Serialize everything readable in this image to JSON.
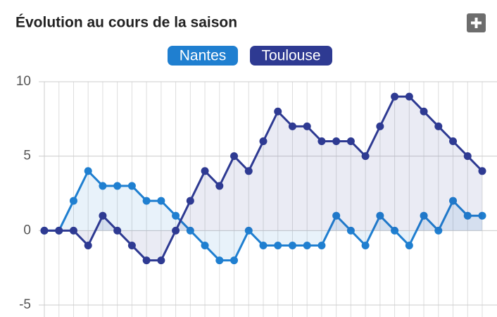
{
  "chart_data": {
    "type": "line",
    "title": "Évolution au cours de la saison",
    "series": [
      {
        "name": "Nantes",
        "color": "#1f7fd0",
        "values": [
          0,
          0,
          2,
          4,
          3,
          3,
          3,
          2,
          2,
          1,
          0,
          -1,
          -2,
          -2,
          0,
          -1,
          -1,
          -1,
          -1,
          -1,
          1,
          0,
          -1,
          1,
          0,
          -1,
          1,
          0,
          2,
          1,
          1
        ]
      },
      {
        "name": "Toulouse",
        "color": "#2e3a92",
        "values": [
          0,
          0,
          0,
          -1,
          1,
          0,
          -1,
          -2,
          -2,
          0,
          2,
          4,
          3,
          5,
          4,
          6,
          8,
          7,
          7,
          6,
          6,
          6,
          5,
          7,
          9,
          9,
          8,
          7,
          6,
          5,
          4
        ]
      }
    ],
    "ylim": [
      -5,
      10
    ],
    "yticks": [
      -5,
      0,
      5,
      10
    ],
    "grid": true,
    "legend": "top"
  }
}
